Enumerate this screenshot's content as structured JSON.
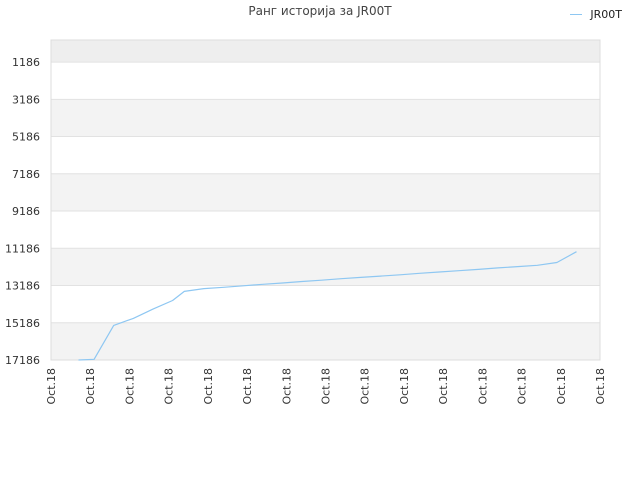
{
  "chart_data": {
    "type": "line",
    "title": "Ранг историја за JR00T",
    "legend": {
      "position": "top-right",
      "entries": [
        "JR00T"
      ]
    },
    "series": [
      {
        "name": "JR00T",
        "color": "#8ec7f2",
        "x": [
          0.7,
          1.1,
          1.6,
          2.1,
          2.6,
          3.1,
          3.4,
          3.9,
          4.4,
          4.9,
          5.4,
          5.9,
          6.4,
          6.9,
          7.4,
          7.9,
          8.4,
          8.9,
          9.4,
          9.9,
          10.4,
          10.9,
          11.4,
          11.9,
          12.4,
          12.9,
          13.4
        ],
        "y": [
          17186,
          17150,
          15330,
          14950,
          14450,
          13990,
          13500,
          13350,
          13280,
          13200,
          13120,
          13050,
          12970,
          12900,
          12820,
          12750,
          12680,
          12610,
          12530,
          12460,
          12390,
          12320,
          12240,
          12170,
          12100,
          11950,
          11370
        ]
      }
    ],
    "ylim": [
      17186,
      0
    ],
    "y_ticks": [
      1186,
      3186,
      5186,
      7186,
      9186,
      11186,
      13186,
      15186,
      17186
    ],
    "y_tick_labels": [
      "1186",
      "3186",
      "5186",
      "7186",
      "9186",
      "11186",
      "13186",
      "15186",
      "17186"
    ],
    "y_inverted": true,
    "xlim": [
      0,
      14
    ],
    "x_ticks": [
      0,
      1,
      2,
      3,
      4,
      5,
      6,
      7,
      8,
      9,
      10,
      11,
      12,
      13,
      14
    ],
    "x_tick_labels": [
      "Oct.18",
      "Oct.18",
      "Oct.18",
      "Oct.18",
      "Oct.18",
      "Oct.18",
      "Oct.18",
      "Oct.18",
      "Oct.18",
      "Oct.18",
      "Oct.18",
      "Oct.18",
      "Oct.18",
      "Oct.18",
      "Oct.18"
    ],
    "grid": true,
    "xlabel": "",
    "ylabel": ""
  }
}
